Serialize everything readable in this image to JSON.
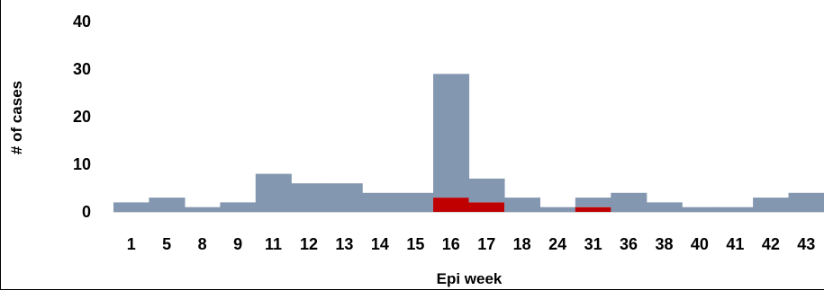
{
  "chart_data": {
    "type": "bar",
    "stacked": true,
    "title": "",
    "xlabel": "Epi week",
    "ylabel": "# of cases",
    "ylim": [
      0,
      40
    ],
    "yticks": [
      0,
      10,
      20,
      30,
      40
    ],
    "grid": false,
    "legend": "none",
    "categories": [
      "1",
      "5",
      "8",
      "9",
      "11",
      "12",
      "13",
      "14",
      "15",
      "16",
      "17",
      "18",
      "24",
      "31",
      "36",
      "38",
      "40",
      "41",
      "42",
      "43"
    ],
    "series": [
      {
        "color": "#c00000",
        "values": [
          0,
          0,
          0,
          0,
          0,
          0,
          0,
          0,
          0,
          3,
          2,
          0,
          0,
          1,
          0,
          0,
          0,
          0,
          0,
          0
        ]
      },
      {
        "color": "#8497b0",
        "values": [
          2,
          3,
          1,
          2,
          8,
          6,
          6,
          4,
          4,
          26,
          5,
          3,
          1,
          2,
          4,
          2,
          1,
          1,
          3,
          4
        ]
      }
    ]
  }
}
